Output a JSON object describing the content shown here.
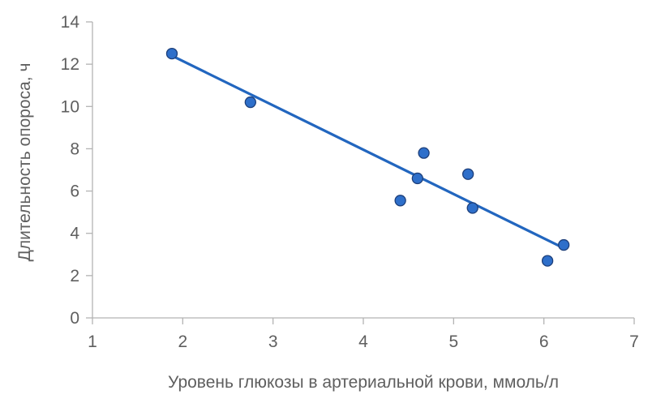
{
  "chart_data": {
    "type": "scatter",
    "title": "",
    "xlabel": "Уровень глюкозы в артериальной крови, ммоль/л",
    "ylabel": "Длительность опороса, ч",
    "xlim": [
      1,
      7
    ],
    "ylim": [
      0,
      14
    ],
    "x_ticks": [
      1,
      2,
      3,
      4,
      5,
      6,
      7
    ],
    "y_ticks": [
      0,
      2,
      4,
      6,
      8,
      10,
      12,
      14
    ],
    "grid": false,
    "legend": "none",
    "series": [
      {
        "x": [
          1.88,
          2.75,
          4.41,
          4.6,
          4.67,
          5.16,
          5.21,
          6.04,
          6.22
        ],
        "y": [
          12.5,
          10.2,
          5.55,
          6.6,
          7.8,
          6.8,
          5.2,
          2.7,
          3.45
        ]
      }
    ],
    "trendline": {
      "type": "linear",
      "x": [
        1.88,
        6.22
      ],
      "y": [
        12.4,
        3.3
      ]
    },
    "colors": {
      "marker_fill": "#2e6fca",
      "marker_stroke": "#1d3f7a",
      "trendline": "#2266bf",
      "axis": "#b3b3b3",
      "text": "#5f5f5f"
    }
  }
}
